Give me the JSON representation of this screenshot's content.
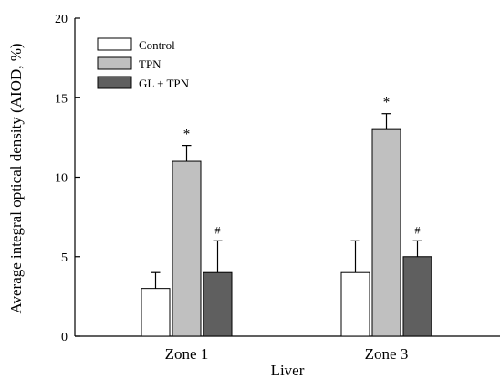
{
  "chart_data": {
    "type": "bar",
    "title": "",
    "xlabel": "Liver",
    "ylabel": "Average integral optical density (AIOD, %)",
    "categories": [
      "Zone 1",
      "Zone 3"
    ],
    "ylim": [
      0,
      20
    ],
    "yticks": [
      0,
      5,
      10,
      15,
      20
    ],
    "grid": false,
    "legend_position": "top-left",
    "series": [
      {
        "name": "Control",
        "values": [
          3,
          4
        ],
        "errors": [
          1,
          2
        ],
        "markers": [
          "",
          ""
        ],
        "color": "#ffffff"
      },
      {
        "name": "TPN",
        "values": [
          11,
          13
        ],
        "errors": [
          1,
          1
        ],
        "markers": [
          "*",
          "*"
        ],
        "color": "#c0c0c0"
      },
      {
        "name": "GL + TPN",
        "values": [
          4,
          5
        ],
        "errors": [
          2,
          1
        ],
        "markers": [
          "#",
          "#"
        ],
        "color": "#5f5f5f"
      }
    ]
  }
}
